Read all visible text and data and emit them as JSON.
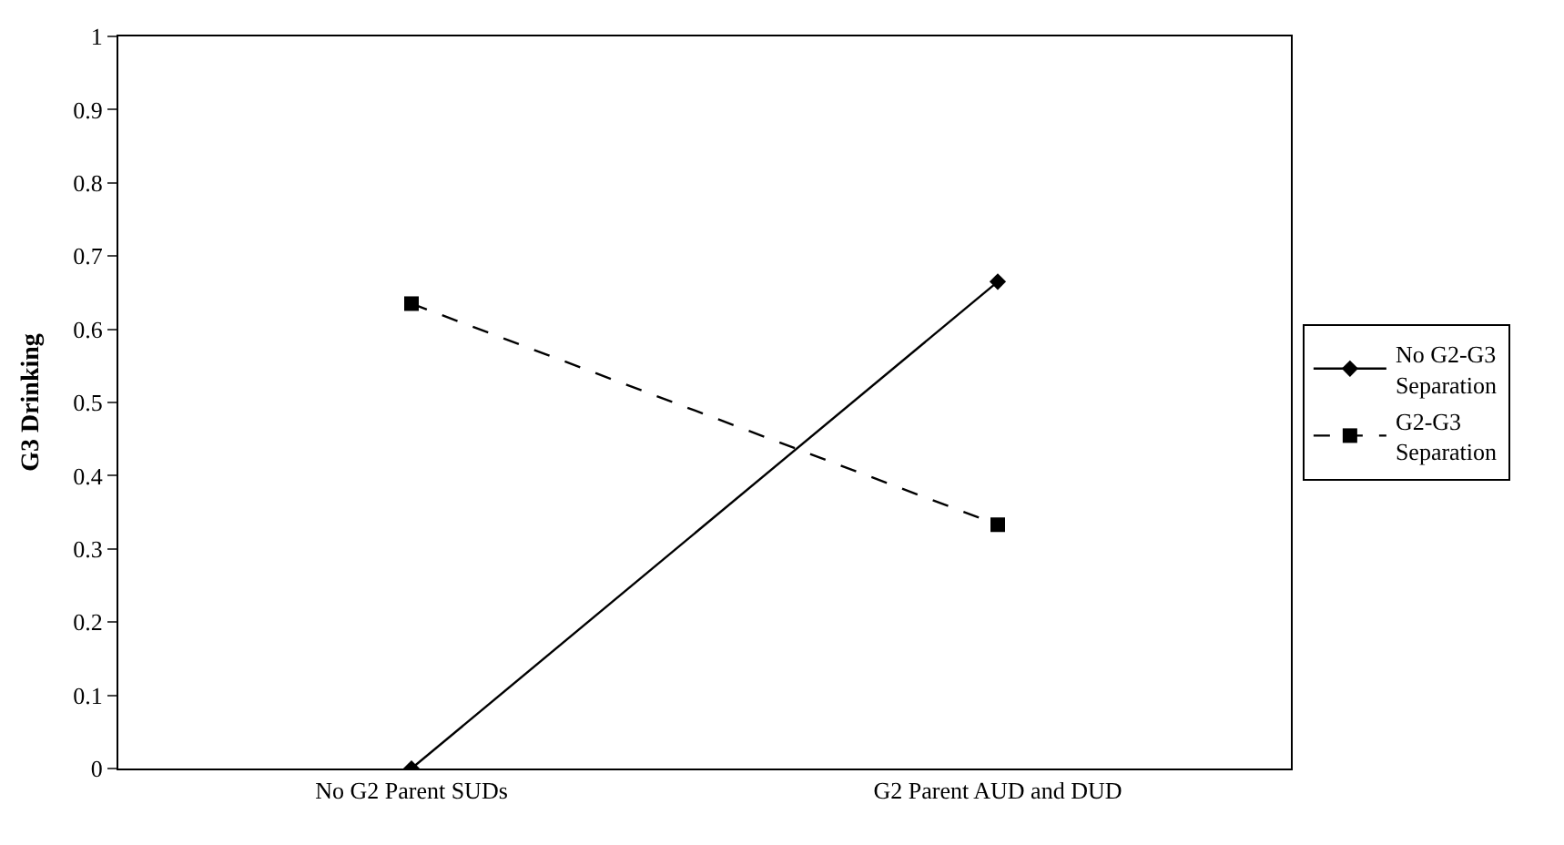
{
  "chart_data": {
    "type": "line",
    "ylabel": "G3 Drinking",
    "categories": [
      "No G2 Parent SUDs",
      "G2 Parent AUD and DUD"
    ],
    "series": [
      {
        "name": "No G2-G3 Separation",
        "color": "#000000",
        "values": [
          0,
          0.665
        ],
        "marker": "diamond",
        "line_style": "solid"
      },
      {
        "name": "G2-G3 Separation",
        "color": "#000000",
        "values": [
          0.635,
          0.333
        ],
        "marker": "square",
        "line_style": "dashed"
      }
    ],
    "ylim": [
      0,
      1
    ],
    "yticks": [
      0,
      0.1,
      0.2,
      0.3,
      0.4,
      0.5,
      0.6,
      0.7,
      0.8,
      0.9,
      1
    ],
    "legend": "right"
  }
}
